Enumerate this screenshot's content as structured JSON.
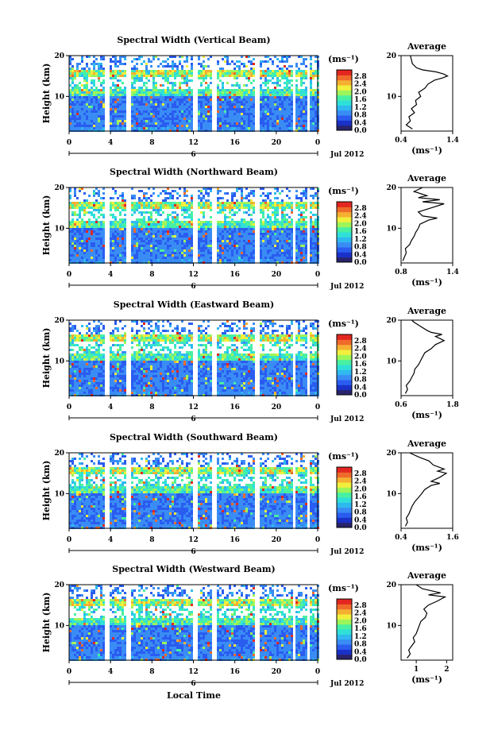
{
  "colors": {
    "scale": [
      "#28236b",
      "#1a31c8",
      "#2a5cf0",
      "#3a8cf5",
      "#2fb9ef",
      "#2fe0d9",
      "#48f0a2",
      "#9ef55a",
      "#f2ef3c",
      "#f5b032",
      "#f06a2b",
      "#e3261f"
    ]
  },
  "shared": {
    "ylabel": "Height (km)",
    "xticks": [
      "0",
      "4",
      "8",
      "12",
      "16",
      "20",
      "0"
    ],
    "date_tick": "6",
    "date_label": "Jul 2012",
    "cbar_unit": "(ms⁻¹)",
    "cbar_ticks": [
      "2.8",
      "2.4",
      "2.0",
      "1.6",
      "1.2",
      "0.8",
      "0.4",
      "0.0"
    ],
    "avg_title": "Average",
    "avg_unit": "(ms⁻¹)",
    "yticks": [
      "20",
      "10"
    ],
    "xlabel": "Local Time"
  },
  "chart_data": [
    {
      "type": "heatmap",
      "title": "Spectral Width (Vertical Beam)",
      "xlabel": "Local Time",
      "ylabel": "Height (km)",
      "xlim": [
        0,
        24
      ],
      "ylim": [
        1.5,
        20
      ],
      "clim": [
        0.0,
        3.0
      ],
      "profile": {
        "title": "Average",
        "xticks": [
          "0.4",
          "1.4"
        ],
        "xlim": [
          0.4,
          1.4
        ],
        "points": [
          [
            0.62,
            2
          ],
          [
            0.5,
            3
          ],
          [
            0.58,
            4
          ],
          [
            0.55,
            5
          ],
          [
            0.66,
            6
          ],
          [
            0.6,
            7
          ],
          [
            0.7,
            8
          ],
          [
            0.68,
            9
          ],
          [
            0.78,
            10
          ],
          [
            0.74,
            11
          ],
          [
            0.86,
            12
          ],
          [
            0.92,
            13
          ],
          [
            1.05,
            14
          ],
          [
            1.2,
            14.5
          ],
          [
            1.3,
            15
          ],
          [
            1.22,
            15.5
          ],
          [
            1.08,
            16
          ],
          [
            0.82,
            16.5
          ],
          [
            0.7,
            17
          ],
          [
            0.62,
            18
          ],
          [
            0.6,
            19
          ],
          [
            0.58,
            20
          ]
        ]
      }
    },
    {
      "type": "heatmap",
      "title": "Spectral Width (Northward Beam)",
      "xlabel": "Local Time",
      "ylabel": "Height (km)",
      "xlim": [
        0,
        24
      ],
      "ylim": [
        1.5,
        20
      ],
      "clim": [
        0.0,
        3.0
      ],
      "profile": {
        "title": "Average",
        "xticks": [
          "0.8",
          "1.4"
        ],
        "xlim": [
          0.8,
          1.4
        ],
        "points": [
          [
            0.82,
            2
          ],
          [
            0.84,
            3
          ],
          [
            0.86,
            4
          ],
          [
            0.85,
            5
          ],
          [
            0.9,
            6
          ],
          [
            0.92,
            7
          ],
          [
            0.95,
            8
          ],
          [
            0.97,
            9
          ],
          [
            1.0,
            10
          ],
          [
            1.02,
            11
          ],
          [
            1.12,
            12
          ],
          [
            1.22,
            12.5
          ],
          [
            1.05,
            13
          ],
          [
            1.0,
            14
          ],
          [
            1.15,
            15
          ],
          [
            1.3,
            16
          ],
          [
            1.05,
            16.5
          ],
          [
            1.25,
            17
          ],
          [
            1.0,
            17.5
          ],
          [
            1.1,
            18
          ],
          [
            0.95,
            19
          ],
          [
            1.05,
            20
          ]
        ]
      }
    },
    {
      "type": "heatmap",
      "title": "Spectral Width (Eastward Beam)",
      "xlabel": "Local Time",
      "ylabel": "Height (km)",
      "xlim": [
        0,
        24
      ],
      "ylim": [
        1.5,
        20
      ],
      "clim": [
        0.0,
        3.0
      ],
      "profile": {
        "title": "Average",
        "xticks": [
          "0.6",
          "1.8"
        ],
        "xlim": [
          0.6,
          1.8
        ],
        "points": [
          [
            0.7,
            2
          ],
          [
            0.75,
            3
          ],
          [
            0.72,
            4
          ],
          [
            0.8,
            5
          ],
          [
            0.85,
            6
          ],
          [
            0.9,
            7
          ],
          [
            0.92,
            8
          ],
          [
            1.0,
            9
          ],
          [
            1.05,
            10
          ],
          [
            1.1,
            11
          ],
          [
            1.15,
            12
          ],
          [
            1.3,
            13
          ],
          [
            1.4,
            14
          ],
          [
            1.6,
            15
          ],
          [
            1.5,
            15.5
          ],
          [
            1.4,
            16
          ],
          [
            1.55,
            16.5
          ],
          [
            1.3,
            17
          ],
          [
            1.2,
            17.5
          ],
          [
            1.05,
            18.5
          ],
          [
            0.9,
            19.5
          ],
          [
            0.85,
            20
          ]
        ]
      }
    },
    {
      "type": "heatmap",
      "title": "Spectral Width (Southward Beam)",
      "xlabel": "Local Time",
      "ylabel": "Height (km)",
      "xlim": [
        0,
        24
      ],
      "ylim": [
        1.5,
        20
      ],
      "clim": [
        0.0,
        3.0
      ],
      "profile": {
        "title": "Average",
        "xticks": [
          "0.4",
          "1.6"
        ],
        "xlim": [
          0.4,
          1.6
        ],
        "points": [
          [
            0.5,
            2
          ],
          [
            0.55,
            3
          ],
          [
            0.52,
            4
          ],
          [
            0.58,
            5
          ],
          [
            0.62,
            6
          ],
          [
            0.66,
            7
          ],
          [
            0.72,
            8
          ],
          [
            0.8,
            9
          ],
          [
            0.88,
            10
          ],
          [
            0.95,
            11
          ],
          [
            1.1,
            12
          ],
          [
            1.3,
            12.5
          ],
          [
            1.1,
            13
          ],
          [
            1.3,
            14
          ],
          [
            1.45,
            15
          ],
          [
            1.25,
            15.5
          ],
          [
            1.4,
            16
          ],
          [
            1.15,
            17
          ],
          [
            1.05,
            18
          ],
          [
            0.8,
            19
          ],
          [
            0.6,
            20
          ]
        ]
      }
    },
    {
      "type": "heatmap",
      "title": "Spectral Width (Westward Beam)",
      "xlabel": "Local Time",
      "ylabel": "Height (km)",
      "xlim": [
        0,
        24
      ],
      "ylim": [
        1.5,
        20
      ],
      "clim": [
        0.0,
        3.0
      ],
      "profile": {
        "title": "Average",
        "xticks": [
          "1",
          "2"
        ],
        "xlim": [
          0.5,
          2.2
        ],
        "points": [
          [
            0.7,
            2
          ],
          [
            0.8,
            3
          ],
          [
            0.75,
            4
          ],
          [
            0.85,
            5
          ],
          [
            0.95,
            6
          ],
          [
            0.9,
            7
          ],
          [
            1.0,
            8
          ],
          [
            1.05,
            9
          ],
          [
            1.1,
            10
          ],
          [
            1.15,
            11
          ],
          [
            1.3,
            12
          ],
          [
            1.35,
            13
          ],
          [
            1.25,
            14
          ],
          [
            1.4,
            15
          ],
          [
            1.7,
            16
          ],
          [
            1.95,
            17
          ],
          [
            1.4,
            17.5
          ],
          [
            1.8,
            18
          ],
          [
            1.2,
            19
          ],
          [
            1.0,
            20
          ]
        ]
      }
    }
  ]
}
